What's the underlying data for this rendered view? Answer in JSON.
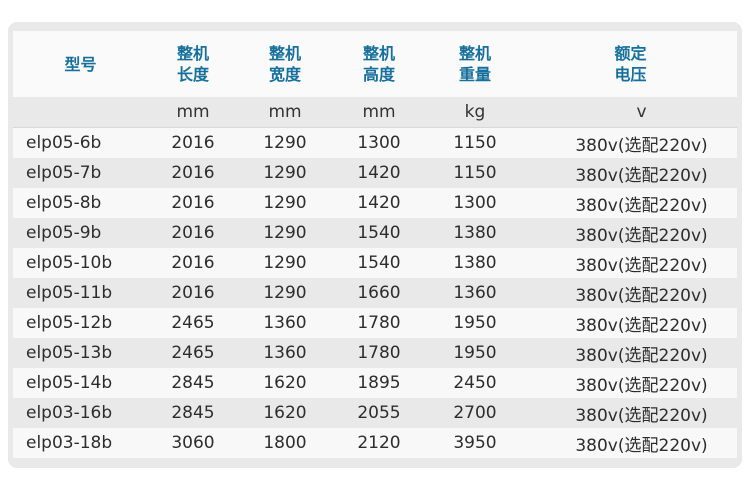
{
  "page": {
    "background": "#ffffff"
  },
  "card": {
    "background": "#e9e9e9",
    "stripe_white": "#f8f8f8",
    "header_background": "#fafafa",
    "header_text_color": "#17709c",
    "body_text_color": "#2d2d2d"
  },
  "table": {
    "columns": [
      {
        "id": "model",
        "line1": "型号",
        "line2": "",
        "unit": ""
      },
      {
        "id": "length",
        "line1": "整机",
        "line2": "长度",
        "unit": "mm"
      },
      {
        "id": "width",
        "line1": "整机",
        "line2": "宽度",
        "unit": "mm"
      },
      {
        "id": "height",
        "line1": "整机",
        "line2": "高度",
        "unit": "mm"
      },
      {
        "id": "weight",
        "line1": "整机",
        "line2": "重量",
        "unit": "kg"
      },
      {
        "id": "voltage",
        "line1": "额定",
        "line2": "电压",
        "unit": "v"
      }
    ],
    "rows": [
      [
        "elp05-6b",
        "2016",
        "1290",
        "1300",
        "1150",
        "380v(选配220v)"
      ],
      [
        "elp05-7b",
        "2016",
        "1290",
        "1420",
        "1150",
        "380v(选配220v)"
      ],
      [
        "elp05-8b",
        "2016",
        "1290",
        "1420",
        "1300",
        "380v(选配220v)"
      ],
      [
        "elp05-9b",
        "2016",
        "1290",
        "1540",
        "1380",
        "380v(选配220v)"
      ],
      [
        "elp05-10b",
        "2016",
        "1290",
        "1540",
        "1380",
        "380v(选配220v)"
      ],
      [
        "elp05-11b",
        "2016",
        "1290",
        "1660",
        "1360",
        "380v(选配220v)"
      ],
      [
        "elp05-12b",
        "2465",
        "1360",
        "1780",
        "1950",
        "380v(选配220v)"
      ],
      [
        "elp05-13b",
        "2465",
        "1360",
        "1780",
        "1950",
        "380v(选配220v)"
      ],
      [
        "elp05-14b",
        "2845",
        "1620",
        "1895",
        "2450",
        "380v(选配220v)"
      ],
      [
        "elp03-16b",
        "2845",
        "1620",
        "2055",
        "2700",
        "380v(选配220v)"
      ],
      [
        "elp03-18b",
        "3060",
        "1800",
        "2120",
        "3950",
        "380v(选配220v)"
      ]
    ]
  }
}
